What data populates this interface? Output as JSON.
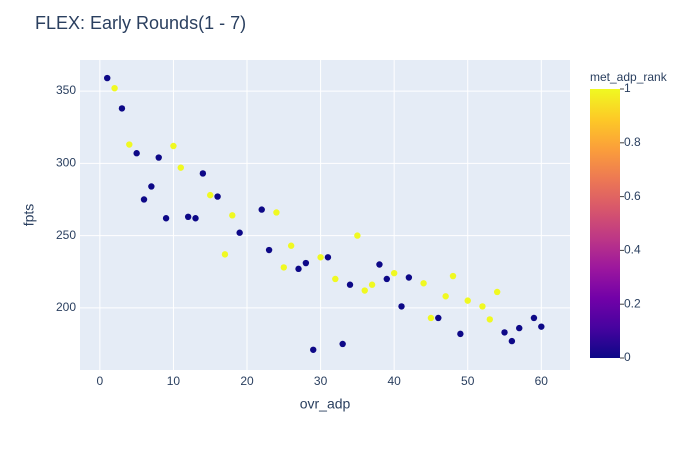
{
  "chart_data": {
    "type": "scatter",
    "title": "FLEX: Early Rounds(1 - 7)",
    "x_label": "ovr_adp",
    "y_label": "fpts",
    "colorbar_title": "met_adp_rank",
    "x": [
      1,
      2,
      3,
      4,
      5,
      6,
      7,
      8,
      9,
      10,
      11,
      12,
      13,
      14,
      15,
      16,
      17,
      18,
      19,
      22,
      23,
      24,
      25,
      26,
      27,
      28,
      29,
      30,
      31,
      32,
      33,
      34,
      35,
      36,
      37,
      38,
      39,
      40,
      41,
      42,
      44,
      45,
      46,
      47,
      48,
      49,
      50,
      52,
      53,
      54,
      55,
      56,
      57,
      59,
      60
    ],
    "y": [
      359,
      352,
      338,
      313,
      307,
      275,
      284,
      304,
      262,
      312,
      297,
      263,
      262,
      293,
      278,
      277,
      237,
      264,
      252,
      268,
      240,
      266,
      228,
      243,
      227,
      231,
      171,
      235,
      235,
      220,
      175,
      216,
      250,
      212,
      216,
      230,
      220,
      224,
      201,
      221,
      217,
      193,
      193,
      208,
      222,
      182,
      205,
      201,
      192,
      211,
      183,
      177,
      186,
      193,
      187
    ],
    "color_values": [
      0,
      1,
      0,
      1,
      0,
      0,
      0,
      0,
      0,
      1,
      1,
      0,
      0,
      0,
      1,
      0,
      1,
      1,
      0,
      0,
      0,
      1,
      1,
      1,
      0,
      0,
      0,
      1,
      0,
      1,
      0,
      0,
      1,
      1,
      1,
      0,
      0,
      1,
      0,
      0,
      1,
      1,
      0,
      1,
      1,
      0,
      1,
      1,
      1,
      1,
      0,
      0,
      0,
      0,
      0
    ],
    "colorscale": [
      "#0d0887",
      "#46039f",
      "#7201a8",
      "#9c179e",
      "#bd3786",
      "#d8576b",
      "#ed7953",
      "#fb9f3a",
      "#fdca26",
      "#f0f921"
    ],
    "xlim": [
      -2.7,
      63.9
    ],
    "ylim": [
      157,
      371.5
    ],
    "clim": [
      0,
      1
    ],
    "xticks": [
      0,
      10,
      20,
      30,
      40,
      50,
      60
    ],
    "yticks": [
      200,
      250,
      300,
      350
    ],
    "cticks": [
      0,
      0.2,
      0.4,
      0.6,
      0.8,
      1
    ],
    "grid": true
  }
}
